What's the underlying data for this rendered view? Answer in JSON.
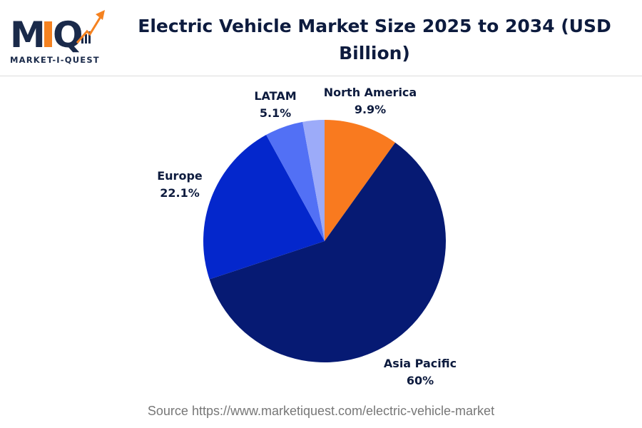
{
  "logo": {
    "text": "MARKET-I-QUEST",
    "mark": "MIQ"
  },
  "chart_data": {
    "type": "pie",
    "title": "Electric Vehicle Market Size 2025 to 2034 (USD Billion)",
    "start": "top",
    "direction": "clockwise",
    "slices": [
      {
        "label": "North America",
        "value": 9.9,
        "display": "9.9%",
        "color": "#F97A1F"
      },
      {
        "label": "Asia Pacific",
        "value": 60,
        "display": "60%",
        "color": "#061A73"
      },
      {
        "label": "Europe",
        "value": 22.1,
        "display": "22.1%",
        "color": "#0427CC"
      },
      {
        "label": "LATAM",
        "value": 5.1,
        "display": "5.1%",
        "color": "#5270F5"
      },
      {
        "label": null,
        "value": 2.9,
        "display": null,
        "color": "#9CABF9"
      }
    ]
  },
  "source": "Source https://www.marketiquest.com/electric-vehicle-market"
}
